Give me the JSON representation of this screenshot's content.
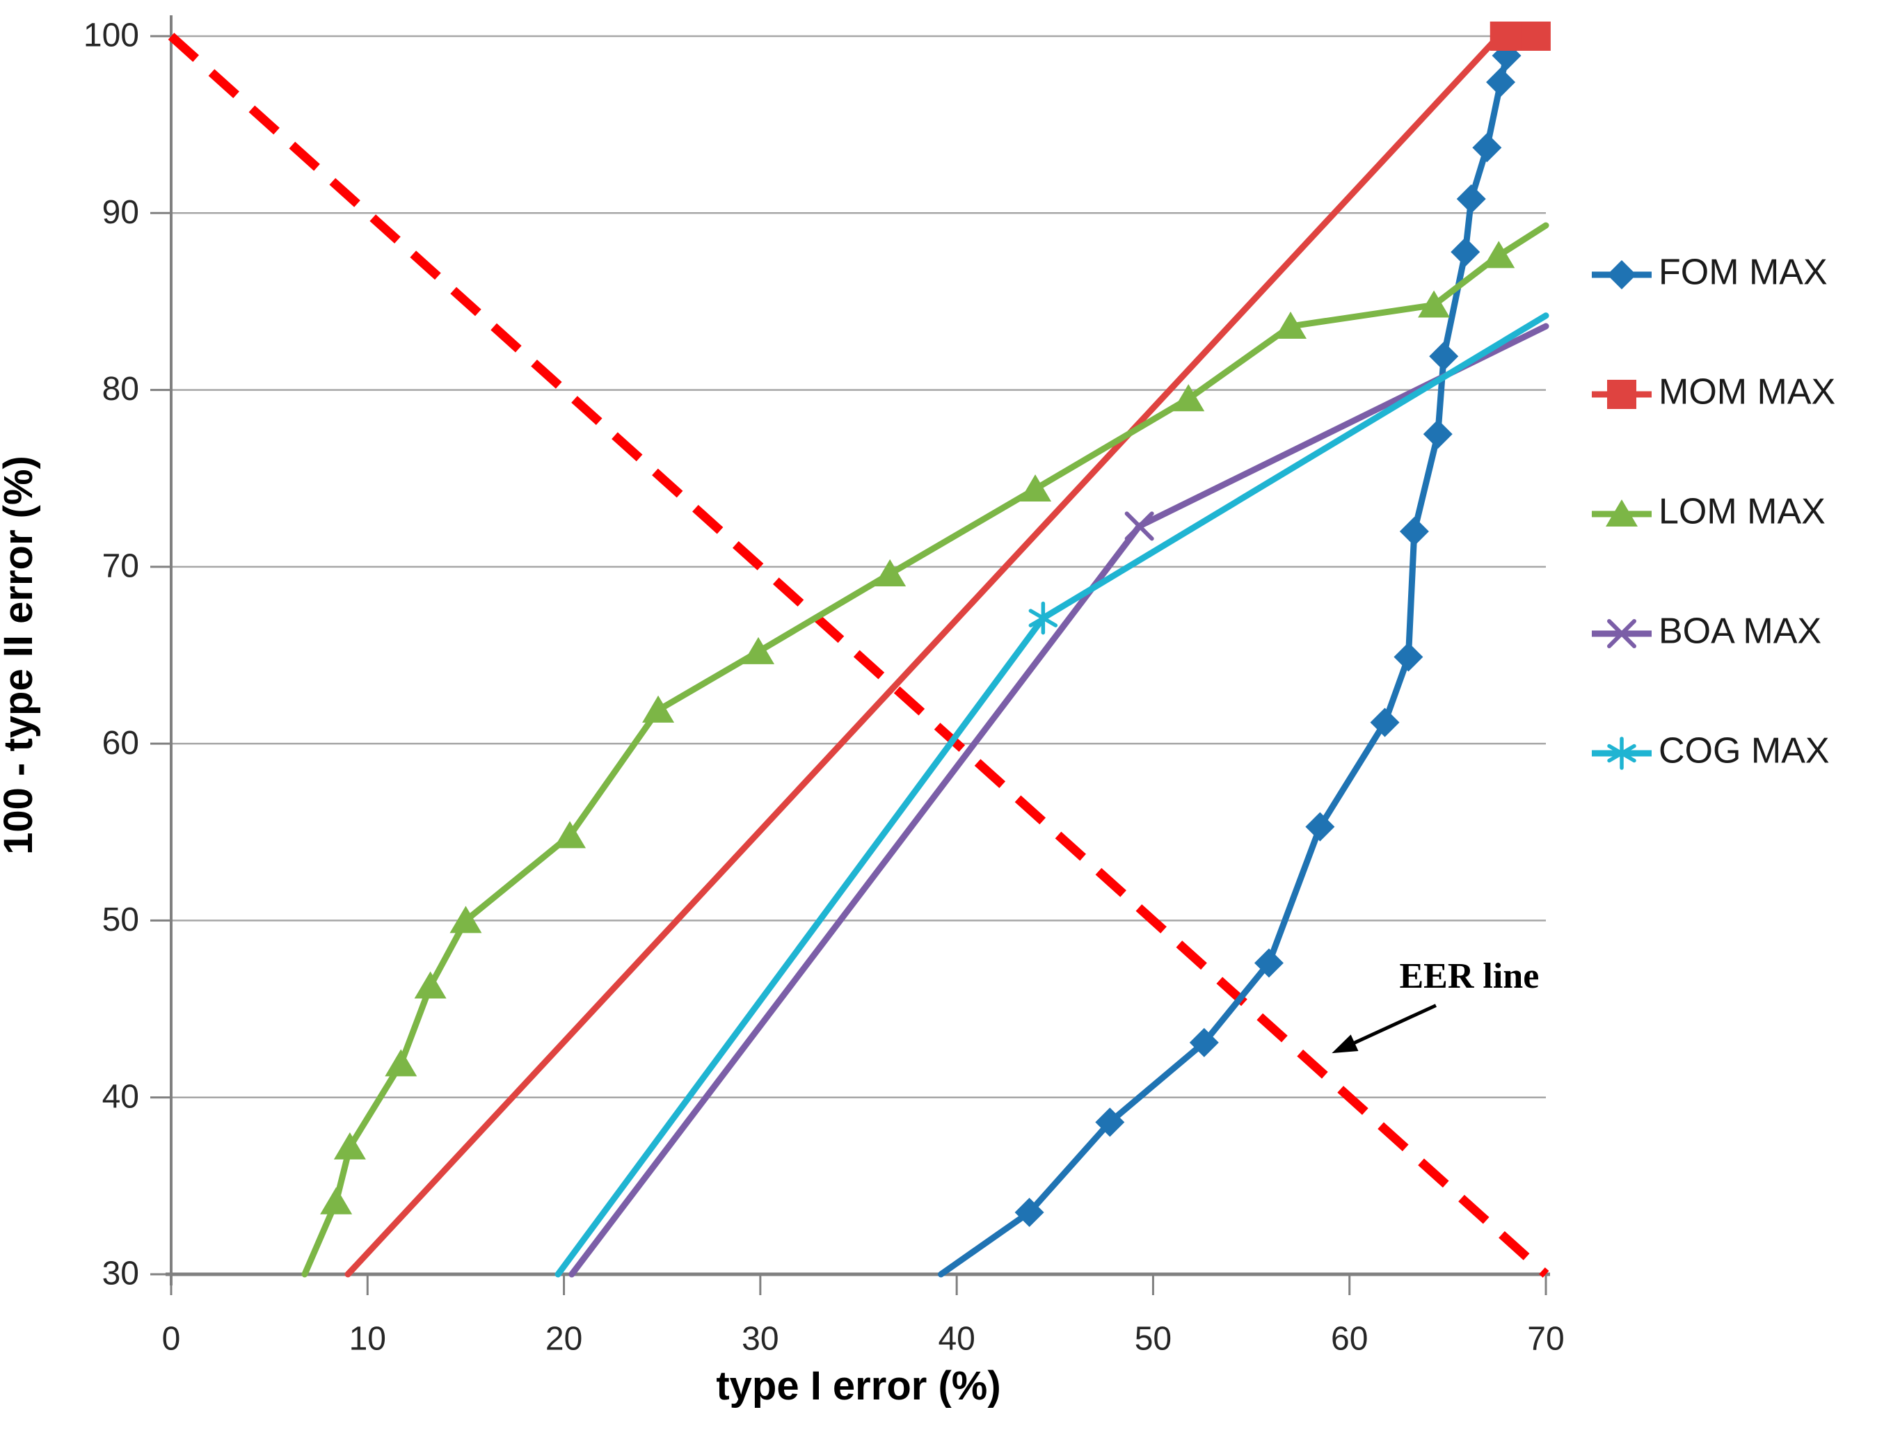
{
  "chart_data": {
    "type": "line",
    "title": "",
    "xlabel": "type I error (%)",
    "ylabel": "100 - type II error (%)",
    "xlim": [
      0,
      70
    ],
    "ylim": [
      30,
      100
    ],
    "xtick_values": [
      0,
      10,
      20,
      30,
      40,
      50,
      60,
      70
    ],
    "xticks": [
      "0",
      "10",
      "20",
      "30",
      "40",
      "50",
      "60",
      "70"
    ],
    "ytick_values": [
      30,
      40,
      50,
      60,
      70,
      80,
      90,
      100
    ],
    "yticks": [
      "30",
      "40",
      "50",
      "60",
      "70",
      "80",
      "90",
      "100"
    ],
    "grid": "horizontal-only",
    "grid_color": "#a6a6a6",
    "axis_color": "#808080",
    "legend_position": "right",
    "series": [
      {
        "name": "FOM MAX",
        "color": "#1f73b3",
        "marker": "diamond",
        "line_points": [
          [
            39.2,
            30
          ],
          [
            43.7,
            33.5
          ],
          [
            47.8,
            38.6
          ],
          [
            52.6,
            43.1
          ],
          [
            55.9,
            47.6
          ],
          [
            58.5,
            55.3
          ],
          [
            61.8,
            61.2
          ],
          [
            63.0,
            64.9
          ],
          [
            63.3,
            72.0
          ],
          [
            64.5,
            77.5
          ],
          [
            64.8,
            81.9
          ],
          [
            65.9,
            87.8
          ],
          [
            66.2,
            90.8
          ],
          [
            67.0,
            93.7
          ],
          [
            67.7,
            97.4
          ],
          [
            68.0,
            98.9
          ],
          [
            68.3,
            99.9
          ]
        ],
        "marker_points": [
          [
            43.7,
            33.5
          ],
          [
            47.8,
            38.6
          ],
          [
            52.6,
            43.1
          ],
          [
            55.9,
            47.6
          ],
          [
            58.5,
            55.3
          ],
          [
            61.8,
            61.2
          ],
          [
            63.0,
            64.9
          ],
          [
            63.3,
            72.0
          ],
          [
            64.5,
            77.5
          ],
          [
            64.8,
            81.9
          ],
          [
            65.9,
            87.8
          ],
          [
            66.2,
            90.8
          ],
          [
            67.0,
            93.7
          ],
          [
            67.7,
            97.4
          ],
          [
            68.0,
            98.9
          ]
        ]
      },
      {
        "name": "MOM MAX",
        "color": "#df4340",
        "marker": "square",
        "line_points": [
          [
            9.0,
            30
          ],
          [
            67.6,
            100
          ],
          [
            69.9,
            100
          ]
        ],
        "marker_points": [
          [
            67.9,
            100
          ],
          [
            68.7,
            100
          ],
          [
            69.5,
            100
          ]
        ]
      },
      {
        "name": "LOM MAX",
        "color": "#7cb646",
        "marker": "triangle",
        "line_points": [
          [
            6.8,
            30
          ],
          [
            8.4,
            34.1
          ],
          [
            9.1,
            37.2
          ],
          [
            11.7,
            41.9
          ],
          [
            13.2,
            46.3
          ],
          [
            15.0,
            50.0
          ],
          [
            20.3,
            54.8
          ],
          [
            24.8,
            61.9
          ],
          [
            29.9,
            65.2
          ],
          [
            36.6,
            69.6
          ],
          [
            44.0,
            74.4
          ],
          [
            51.8,
            79.5
          ],
          [
            57.0,
            83.6
          ],
          [
            64.3,
            84.8
          ],
          [
            67.6,
            87.6
          ],
          [
            70.0,
            89.3
          ]
        ],
        "marker_points": [
          [
            8.4,
            34.1
          ],
          [
            9.1,
            37.2
          ],
          [
            11.7,
            41.9
          ],
          [
            13.2,
            46.3
          ],
          [
            15.0,
            50.0
          ],
          [
            20.3,
            54.8
          ],
          [
            24.8,
            61.9
          ],
          [
            29.9,
            65.2
          ],
          [
            36.6,
            69.6
          ],
          [
            44.0,
            74.4
          ],
          [
            51.8,
            79.5
          ],
          [
            57.0,
            83.6
          ],
          [
            64.3,
            84.8
          ],
          [
            67.6,
            87.6
          ]
        ]
      },
      {
        "name": "BOA MAX",
        "color": "#7b5ea7",
        "marker": "x",
        "line_points": [
          [
            20.4,
            30
          ],
          [
            49.3,
            72.3
          ],
          [
            70.0,
            83.6
          ]
        ],
        "marker_points": [
          [
            49.3,
            72.3
          ]
        ]
      },
      {
        "name": "COG MAX",
        "color": "#1fb4d2",
        "marker": "asterisk",
        "line_points": [
          [
            19.7,
            30
          ],
          [
            44.4,
            67.1
          ],
          [
            70.0,
            84.2
          ]
        ],
        "marker_points": [
          [
            44.4,
            67.1
          ]
        ]
      }
    ],
    "eer": {
      "label": "EER line",
      "color": "#ff0000",
      "style": "dashed",
      "from": [
        0,
        100
      ],
      "to": [
        70,
        30
      ],
      "label_pos": [
        66.1,
        46.2
      ],
      "arrow_from": [
        64.4,
        45.2
      ],
      "arrow_to": [
        59.1,
        42.5
      ]
    }
  }
}
